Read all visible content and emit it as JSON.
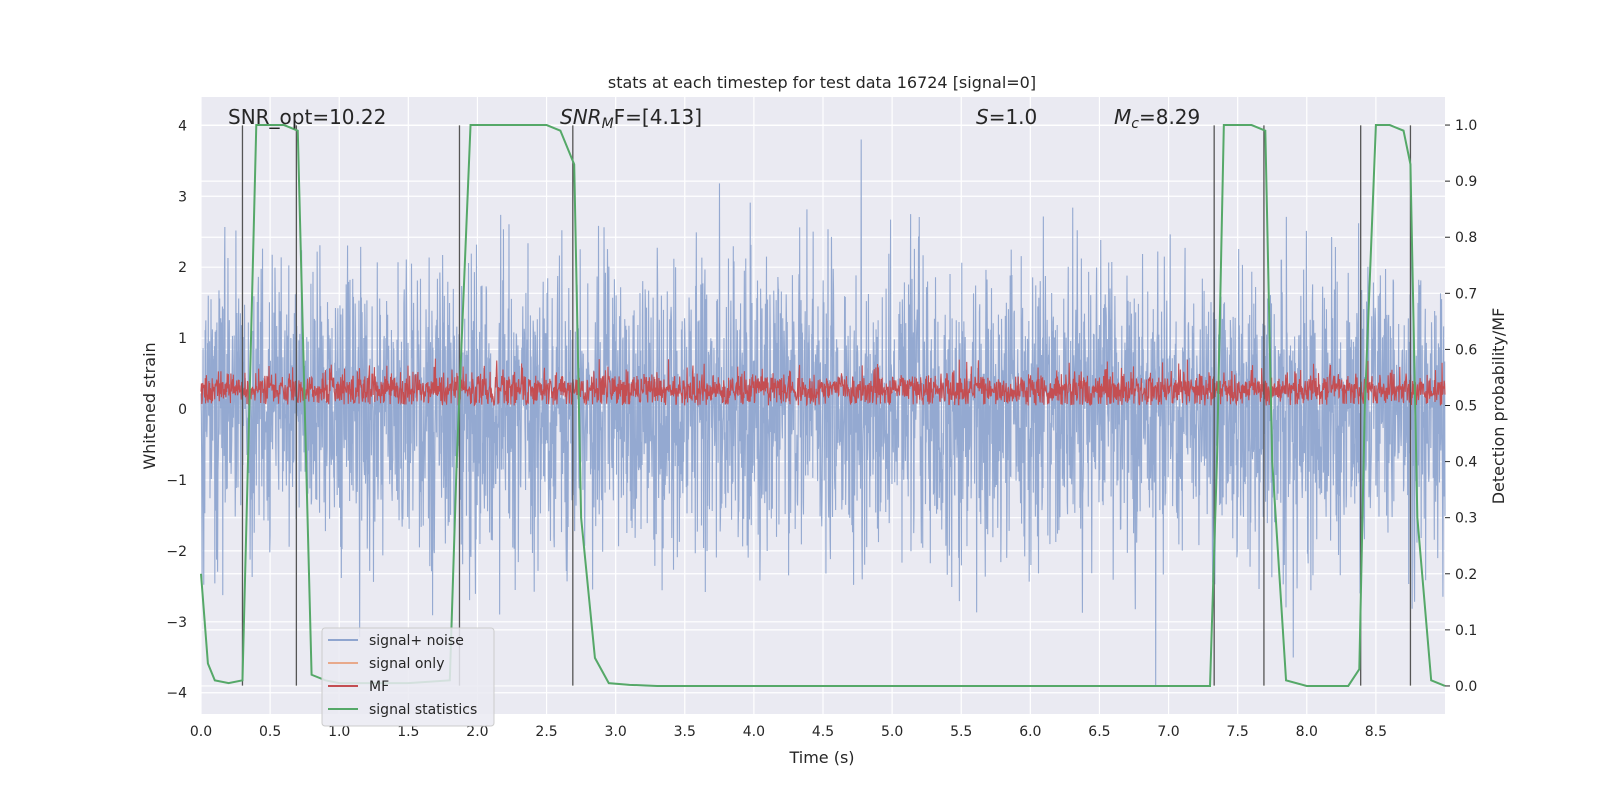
{
  "chart_data": {
    "type": "line",
    "title": "stats at each timestep for test data 16724 [signal=0]",
    "xlabel": "Time (s)",
    "ylabel": "Whitened strain",
    "ylabel_right": "Detection probability/MF",
    "xlim": [
      0.0,
      9.0
    ],
    "ylim": [
      -4.3,
      4.4
    ],
    "ylim_right": [
      -0.05,
      1.05
    ],
    "x_ticks": [
      "0.0",
      "0.5",
      "1.0",
      "1.5",
      "2.0",
      "2.5",
      "3.0",
      "3.5",
      "4.0",
      "4.5",
      "5.0",
      "5.5",
      "6.0",
      "6.5",
      "7.0",
      "7.5",
      "8.0",
      "8.5"
    ],
    "y_ticks": [
      "4",
      "3",
      "2",
      "1",
      "0",
      "−1",
      "−2",
      "−3",
      "−4"
    ],
    "y_right_ticks": [
      "1.0",
      "0.9",
      "0.8",
      "0.7",
      "0.6",
      "0.5",
      "0.4",
      "0.3",
      "0.2",
      "0.1",
      "0.0"
    ],
    "annotations": {
      "snr_opt": "SNR_opt=10.22",
      "snr_mf_sym": "SNR",
      "snr_mf_sub": "M",
      "snr_mf_rest": "F=[4.13]",
      "s_sym": "S",
      "s_rest": "=1.0",
      "mc_sym": "M",
      "mc_sub": "c",
      "mc_rest": "=8.29"
    },
    "legend": {
      "placement": "lower-left",
      "entries": [
        "signal+ noise",
        "signal only",
        "MF",
        "signal statistics"
      ]
    },
    "colors": {
      "noise": "#8fa5cf",
      "signal_only": "#e8a98b",
      "mf": "#c44e52",
      "stat": "#55a868",
      "vline": "#555555",
      "bg": "#eaeaf2",
      "grid": "#ffffff"
    },
    "series": [
      {
        "name": "signal statistics",
        "axis": "right",
        "x": [
          0.0,
          0.05,
          0.1,
          0.2,
          0.3,
          0.35,
          0.4,
          0.5,
          0.6,
          0.7,
          0.75,
          0.8,
          0.9,
          1.0,
          1.5,
          1.8,
          1.85,
          1.95,
          2.0,
          2.5,
          2.6,
          2.7,
          2.75,
          2.85,
          2.95,
          3.1,
          3.3,
          4.0,
          5.0,
          6.0,
          7.0,
          7.3,
          7.35,
          7.4,
          7.6,
          7.7,
          7.75,
          7.85,
          8.0,
          8.3,
          8.38,
          8.42,
          8.5,
          8.6,
          8.7,
          8.75,
          8.8,
          8.9,
          9.0
        ],
        "y": [
          0.2,
          0.04,
          0.01,
          0.005,
          0.01,
          0.5,
          1.0,
          1.0,
          1.0,
          0.99,
          0.5,
          0.02,
          0.01,
          0.005,
          0.005,
          0.01,
          0.4,
          1.0,
          1.0,
          1.0,
          0.99,
          0.93,
          0.3,
          0.05,
          0.005,
          0.002,
          0.0,
          0.0,
          0.0,
          0.0,
          0.0,
          0.0,
          0.4,
          1.0,
          1.0,
          0.99,
          0.4,
          0.01,
          0.0,
          0.0,
          0.03,
          0.5,
          1.0,
          1.0,
          0.99,
          0.93,
          0.3,
          0.01,
          0.0
        ]
      },
      {
        "name": "signal+ noise",
        "axis": "left",
        "description": "dense whitened noise, band roughly -2.5..2.5 with spikes to about +/-3.8"
      },
      {
        "name": "MF",
        "axis": "right",
        "description": "matched filter output, roughly 0.50..0.58 with spikes to 0.60"
      }
    ],
    "vlines": [
      0.3,
      0.69,
      1.87,
      2.69,
      7.33,
      7.69,
      8.39,
      8.75
    ]
  }
}
